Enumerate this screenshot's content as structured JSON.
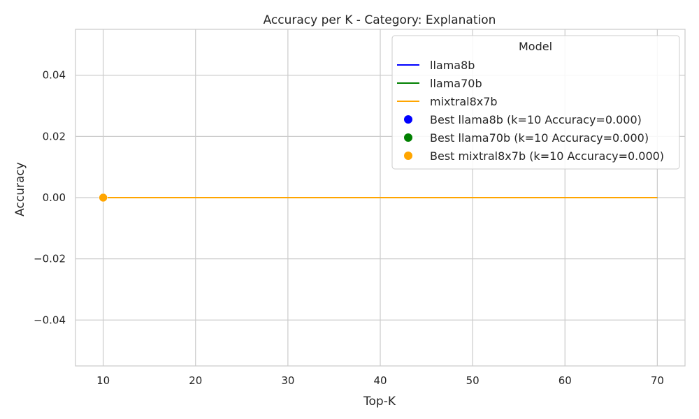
{
  "chart_data": {
    "type": "line",
    "title": "Accuracy per K - Category: Explanation",
    "xlabel": "Top-K",
    "ylabel": "Accuracy",
    "xlim": [
      7,
      73
    ],
    "ylim": [
      -0.055,
      0.055
    ],
    "xticks": [
      10,
      20,
      30,
      40,
      50,
      60,
      70
    ],
    "yticks": [
      -0.04,
      -0.02,
      0.0,
      0.02,
      0.04
    ],
    "ytick_labels": [
      "−0.04",
      "−0.02",
      "0.00",
      "0.02",
      "0.04"
    ],
    "grid": true,
    "legend": {
      "title": "Model",
      "placement": "top-right"
    },
    "series": [
      {
        "name": "llama8b",
        "color": "#0000ff",
        "x": [
          10,
          20,
          30,
          40,
          50,
          60,
          70
        ],
        "y": [
          0,
          0,
          0,
          0,
          0,
          0,
          0
        ]
      },
      {
        "name": "llama70b",
        "color": "#008000",
        "x": [
          10,
          20,
          30,
          40,
          50,
          60,
          70
        ],
        "y": [
          0,
          0,
          0,
          0,
          0,
          0,
          0
        ]
      },
      {
        "name": "mixtral8x7b",
        "color": "#ffa500",
        "x": [
          10,
          20,
          30,
          40,
          50,
          60,
          70
        ],
        "y": [
          0,
          0,
          0,
          0,
          0,
          0,
          0
        ]
      }
    ],
    "best_points": [
      {
        "name": "Best llama8b (k=10 Accuracy=0.000)",
        "color": "#0000ff",
        "x": 10,
        "y": 0
      },
      {
        "name": "Best llama70b (k=10 Accuracy=0.000)",
        "color": "#008000",
        "x": 10,
        "y": 0
      },
      {
        "name": "Best mixtral8x7b (k=10 Accuracy=0.000)",
        "color": "#ffa500",
        "x": 10,
        "y": 0
      }
    ]
  }
}
